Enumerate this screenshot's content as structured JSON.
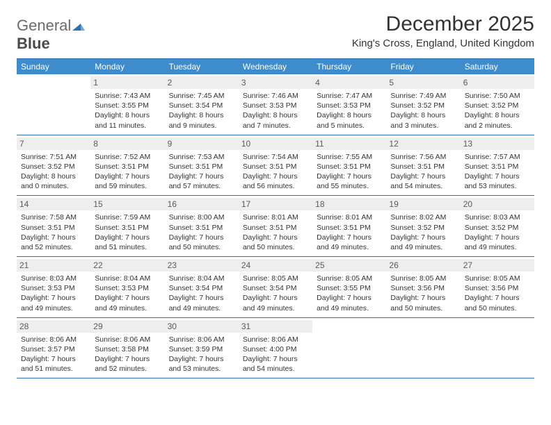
{
  "logo": {
    "word1": "General",
    "word2": "Blue"
  },
  "title": "December 2025",
  "location": "King's Cross, England, United Kingdom",
  "colors": {
    "header_bg": "#3e8ccc",
    "border": "#2a71b8",
    "daynum_bg": "#eeeeee",
    "text": "#333333",
    "logo_gray": "#6b6b6b"
  },
  "day_names": [
    "Sunday",
    "Monday",
    "Tuesday",
    "Wednesday",
    "Thursday",
    "Friday",
    "Saturday"
  ],
  "weeks": [
    [
      {
        "day": "",
        "lines": []
      },
      {
        "day": "1",
        "lines": [
          "Sunrise: 7:43 AM",
          "Sunset: 3:55 PM",
          "Daylight: 8 hours",
          "and 11 minutes."
        ]
      },
      {
        "day": "2",
        "lines": [
          "Sunrise: 7:45 AM",
          "Sunset: 3:54 PM",
          "Daylight: 8 hours",
          "and 9 minutes."
        ]
      },
      {
        "day": "3",
        "lines": [
          "Sunrise: 7:46 AM",
          "Sunset: 3:53 PM",
          "Daylight: 8 hours",
          "and 7 minutes."
        ]
      },
      {
        "day": "4",
        "lines": [
          "Sunrise: 7:47 AM",
          "Sunset: 3:53 PM",
          "Daylight: 8 hours",
          "and 5 minutes."
        ]
      },
      {
        "day": "5",
        "lines": [
          "Sunrise: 7:49 AM",
          "Sunset: 3:52 PM",
          "Daylight: 8 hours",
          "and 3 minutes."
        ]
      },
      {
        "day": "6",
        "lines": [
          "Sunrise: 7:50 AM",
          "Sunset: 3:52 PM",
          "Daylight: 8 hours",
          "and 2 minutes."
        ]
      }
    ],
    [
      {
        "day": "7",
        "lines": [
          "Sunrise: 7:51 AM",
          "Sunset: 3:52 PM",
          "Daylight: 8 hours",
          "and 0 minutes."
        ]
      },
      {
        "day": "8",
        "lines": [
          "Sunrise: 7:52 AM",
          "Sunset: 3:51 PM",
          "Daylight: 7 hours",
          "and 59 minutes."
        ]
      },
      {
        "day": "9",
        "lines": [
          "Sunrise: 7:53 AM",
          "Sunset: 3:51 PM",
          "Daylight: 7 hours",
          "and 57 minutes."
        ]
      },
      {
        "day": "10",
        "lines": [
          "Sunrise: 7:54 AM",
          "Sunset: 3:51 PM",
          "Daylight: 7 hours",
          "and 56 minutes."
        ]
      },
      {
        "day": "11",
        "lines": [
          "Sunrise: 7:55 AM",
          "Sunset: 3:51 PM",
          "Daylight: 7 hours",
          "and 55 minutes."
        ]
      },
      {
        "day": "12",
        "lines": [
          "Sunrise: 7:56 AM",
          "Sunset: 3:51 PM",
          "Daylight: 7 hours",
          "and 54 minutes."
        ]
      },
      {
        "day": "13",
        "lines": [
          "Sunrise: 7:57 AM",
          "Sunset: 3:51 PM",
          "Daylight: 7 hours",
          "and 53 minutes."
        ]
      }
    ],
    [
      {
        "day": "14",
        "lines": [
          "Sunrise: 7:58 AM",
          "Sunset: 3:51 PM",
          "Daylight: 7 hours",
          "and 52 minutes."
        ]
      },
      {
        "day": "15",
        "lines": [
          "Sunrise: 7:59 AM",
          "Sunset: 3:51 PM",
          "Daylight: 7 hours",
          "and 51 minutes."
        ]
      },
      {
        "day": "16",
        "lines": [
          "Sunrise: 8:00 AM",
          "Sunset: 3:51 PM",
          "Daylight: 7 hours",
          "and 50 minutes."
        ]
      },
      {
        "day": "17",
        "lines": [
          "Sunrise: 8:01 AM",
          "Sunset: 3:51 PM",
          "Daylight: 7 hours",
          "and 50 minutes."
        ]
      },
      {
        "day": "18",
        "lines": [
          "Sunrise: 8:01 AM",
          "Sunset: 3:51 PM",
          "Daylight: 7 hours",
          "and 49 minutes."
        ]
      },
      {
        "day": "19",
        "lines": [
          "Sunrise: 8:02 AM",
          "Sunset: 3:52 PM",
          "Daylight: 7 hours",
          "and 49 minutes."
        ]
      },
      {
        "day": "20",
        "lines": [
          "Sunrise: 8:03 AM",
          "Sunset: 3:52 PM",
          "Daylight: 7 hours",
          "and 49 minutes."
        ]
      }
    ],
    [
      {
        "day": "21",
        "lines": [
          "Sunrise: 8:03 AM",
          "Sunset: 3:53 PM",
          "Daylight: 7 hours",
          "and 49 minutes."
        ]
      },
      {
        "day": "22",
        "lines": [
          "Sunrise: 8:04 AM",
          "Sunset: 3:53 PM",
          "Daylight: 7 hours",
          "and 49 minutes."
        ]
      },
      {
        "day": "23",
        "lines": [
          "Sunrise: 8:04 AM",
          "Sunset: 3:54 PM",
          "Daylight: 7 hours",
          "and 49 minutes."
        ]
      },
      {
        "day": "24",
        "lines": [
          "Sunrise: 8:05 AM",
          "Sunset: 3:54 PM",
          "Daylight: 7 hours",
          "and 49 minutes."
        ]
      },
      {
        "day": "25",
        "lines": [
          "Sunrise: 8:05 AM",
          "Sunset: 3:55 PM",
          "Daylight: 7 hours",
          "and 49 minutes."
        ]
      },
      {
        "day": "26",
        "lines": [
          "Sunrise: 8:05 AM",
          "Sunset: 3:56 PM",
          "Daylight: 7 hours",
          "and 50 minutes."
        ]
      },
      {
        "day": "27",
        "lines": [
          "Sunrise: 8:05 AM",
          "Sunset: 3:56 PM",
          "Daylight: 7 hours",
          "and 50 minutes."
        ]
      }
    ],
    [
      {
        "day": "28",
        "lines": [
          "Sunrise: 8:06 AM",
          "Sunset: 3:57 PM",
          "Daylight: 7 hours",
          "and 51 minutes."
        ]
      },
      {
        "day": "29",
        "lines": [
          "Sunrise: 8:06 AM",
          "Sunset: 3:58 PM",
          "Daylight: 7 hours",
          "and 52 minutes."
        ]
      },
      {
        "day": "30",
        "lines": [
          "Sunrise: 8:06 AM",
          "Sunset: 3:59 PM",
          "Daylight: 7 hours",
          "and 53 minutes."
        ]
      },
      {
        "day": "31",
        "lines": [
          "Sunrise: 8:06 AM",
          "Sunset: 4:00 PM",
          "Daylight: 7 hours",
          "and 54 minutes."
        ]
      },
      {
        "day": "",
        "lines": []
      },
      {
        "day": "",
        "lines": []
      },
      {
        "day": "",
        "lines": []
      }
    ]
  ]
}
